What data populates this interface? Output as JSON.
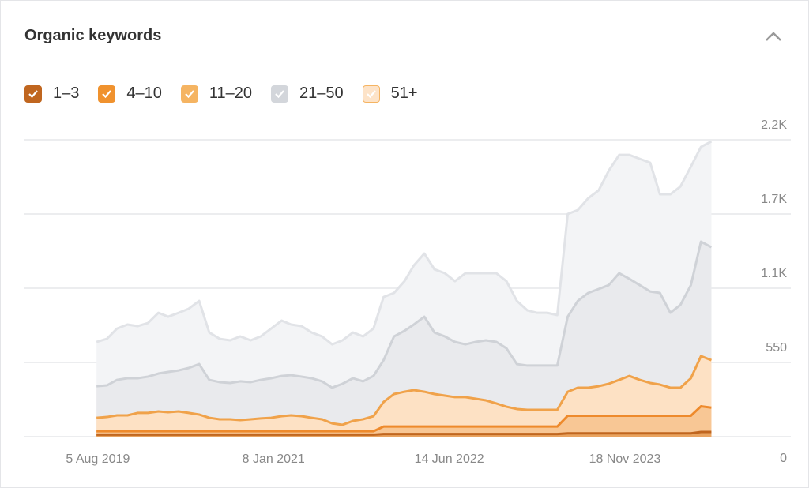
{
  "chart_data": {
    "type": "stacked-area",
    "title": "Organic keywords",
    "x": [
      "2019-08",
      "2019-09",
      "2019-10",
      "2019-11",
      "2019-12",
      "2020-01",
      "2020-02",
      "2020-03",
      "2020-04",
      "2020-05",
      "2020-06",
      "2020-07",
      "2020-08",
      "2020-09",
      "2020-10",
      "2020-11",
      "2020-12",
      "2021-01",
      "2021-02",
      "2021-03",
      "2021-04",
      "2021-05",
      "2021-06",
      "2021-07",
      "2021-08",
      "2021-09",
      "2021-10",
      "2021-11",
      "2021-12",
      "2022-01",
      "2022-02",
      "2022-03",
      "2022-04",
      "2022-05",
      "2022-06",
      "2022-07",
      "2022-08",
      "2022-09",
      "2022-10",
      "2022-11",
      "2022-12",
      "2023-01",
      "2023-02",
      "2023-03",
      "2023-04",
      "2023-05",
      "2023-06",
      "2023-07",
      "2023-08",
      "2023-09",
      "2023-10",
      "2023-11",
      "2023-12",
      "2024-01",
      "2024-02",
      "2024-03",
      "2024-04",
      "2024-05",
      "2024-06",
      "2024-07",
      "2024-08"
    ],
    "series": [
      {
        "name": "1–3",
        "color": "#c0661f",
        "line": "#c0661f",
        "fill": "#e9a461",
        "values": [
          15,
          15,
          15,
          15,
          15,
          15,
          15,
          15,
          15,
          15,
          15,
          15,
          15,
          15,
          15,
          15,
          15,
          15,
          15,
          15,
          15,
          15,
          15,
          15,
          15,
          15,
          15,
          15,
          20,
          20,
          20,
          20,
          20,
          20,
          20,
          20,
          20,
          20,
          20,
          20,
          20,
          20,
          20,
          20,
          20,
          20,
          25,
          25,
          25,
          25,
          25,
          25,
          25,
          25,
          25,
          25,
          25,
          25,
          25,
          35,
          35
        ]
      },
      {
        "name": "4–10",
        "color": "#f0922e",
        "line": "#ee8a2c",
        "fill": "#f8c795",
        "values": [
          25,
          25,
          25,
          25,
          25,
          25,
          25,
          25,
          25,
          25,
          25,
          25,
          25,
          25,
          25,
          25,
          25,
          25,
          25,
          25,
          25,
          25,
          25,
          25,
          25,
          25,
          25,
          25,
          55,
          55,
          55,
          55,
          55,
          55,
          55,
          55,
          55,
          55,
          55,
          55,
          55,
          55,
          55,
          55,
          55,
          55,
          130,
          130,
          130,
          130,
          130,
          130,
          130,
          130,
          130,
          130,
          130,
          130,
          130,
          190,
          180
        ]
      },
      {
        "name": "11–20",
        "color": "#f5b462",
        "line": "#f0a24a",
        "fill": "#fde1c4",
        "values": [
          100,
          106,
          118,
          118,
          136,
          136,
          147,
          141,
          147,
          136,
          124,
          100,
          89,
          89,
          83,
          89,
          95,
          100,
          112,
          118,
          112,
          100,
          89,
          59,
          48,
          77,
          89,
          112,
          182,
          241,
          258,
          270,
          258,
          241,
          229,
          218,
          218,
          206,
          194,
          171,
          147,
          130,
          124,
          124,
          124,
          124,
          178,
          208,
          208,
          219,
          237,
          266,
          295,
          266,
          243,
          231,
          208,
          208,
          278,
          372,
          352
        ]
      },
      {
        "name": "21–50",
        "color": "#d3d6db",
        "line": "#cfd2d7",
        "fill": "#e9eaed",
        "values": [
          234,
          234,
          263,
          275,
          257,
          269,
          281,
          299,
          304,
          333,
          374,
          281,
          275,
          269,
          287,
          275,
          286,
          293,
          298,
          298,
          293,
          293,
          281,
          264,
          304,
          316,
          281,
          298,
          310,
          427,
          451,
          486,
          556,
          456,
          439,
          409,
          391,
          421,
          445,
          456,
          433,
          333,
          328,
          328,
          328,
          328,
          556,
          643,
          702,
          720,
          731,
          790,
          720,
          702,
          678,
          679,
          555,
          614,
          690,
          848,
          837
        ]
      },
      {
        "name": "51+",
        "color": "#fde3c8",
        "line": "#e1e3e7",
        "fill": "#f3f4f6",
        "values": [
          328,
          345,
          380,
          398,
          386,
          397,
          450,
          409,
          427,
          439,
          468,
          351,
          321,
          316,
          333,
          310,
          322,
          368,
          410,
          375,
          374,
          339,
          333,
          321,
          322,
          339,
          333,
          351,
          468,
          322,
          368,
          438,
          468,
          468,
          468,
          450,
          527,
          509,
          497,
          509,
          497,
          468,
          409,
          391,
          391,
          374,
          761,
          673,
          702,
          731,
          848,
          877,
          918,
          936,
          954,
          731,
          878,
          877,
          878,
          702,
          784
        ]
      }
    ],
    "xlim": [
      "2018-12-30",
      "2025-03-25"
    ],
    "xticks": [
      {
        "value": "2019-08-05",
        "label": "5 Aug 2019"
      },
      {
        "value": "2021-01-08",
        "label": "8 Jan 2021"
      },
      {
        "value": "2022-06-14",
        "label": "14 Jun 2022"
      },
      {
        "value": "2023-11-18",
        "label": "18 Nov 2023"
      }
    ],
    "ylim": [
      0,
      2200
    ],
    "yticks": [
      0,
      550,
      {
        "value": 1100,
        "label": "1.1K"
      },
      {
        "value": 1650,
        "label": "1.7K"
      },
      {
        "value": 2200,
        "label": "2.2K"
      }
    ],
    "grid": true
  }
}
